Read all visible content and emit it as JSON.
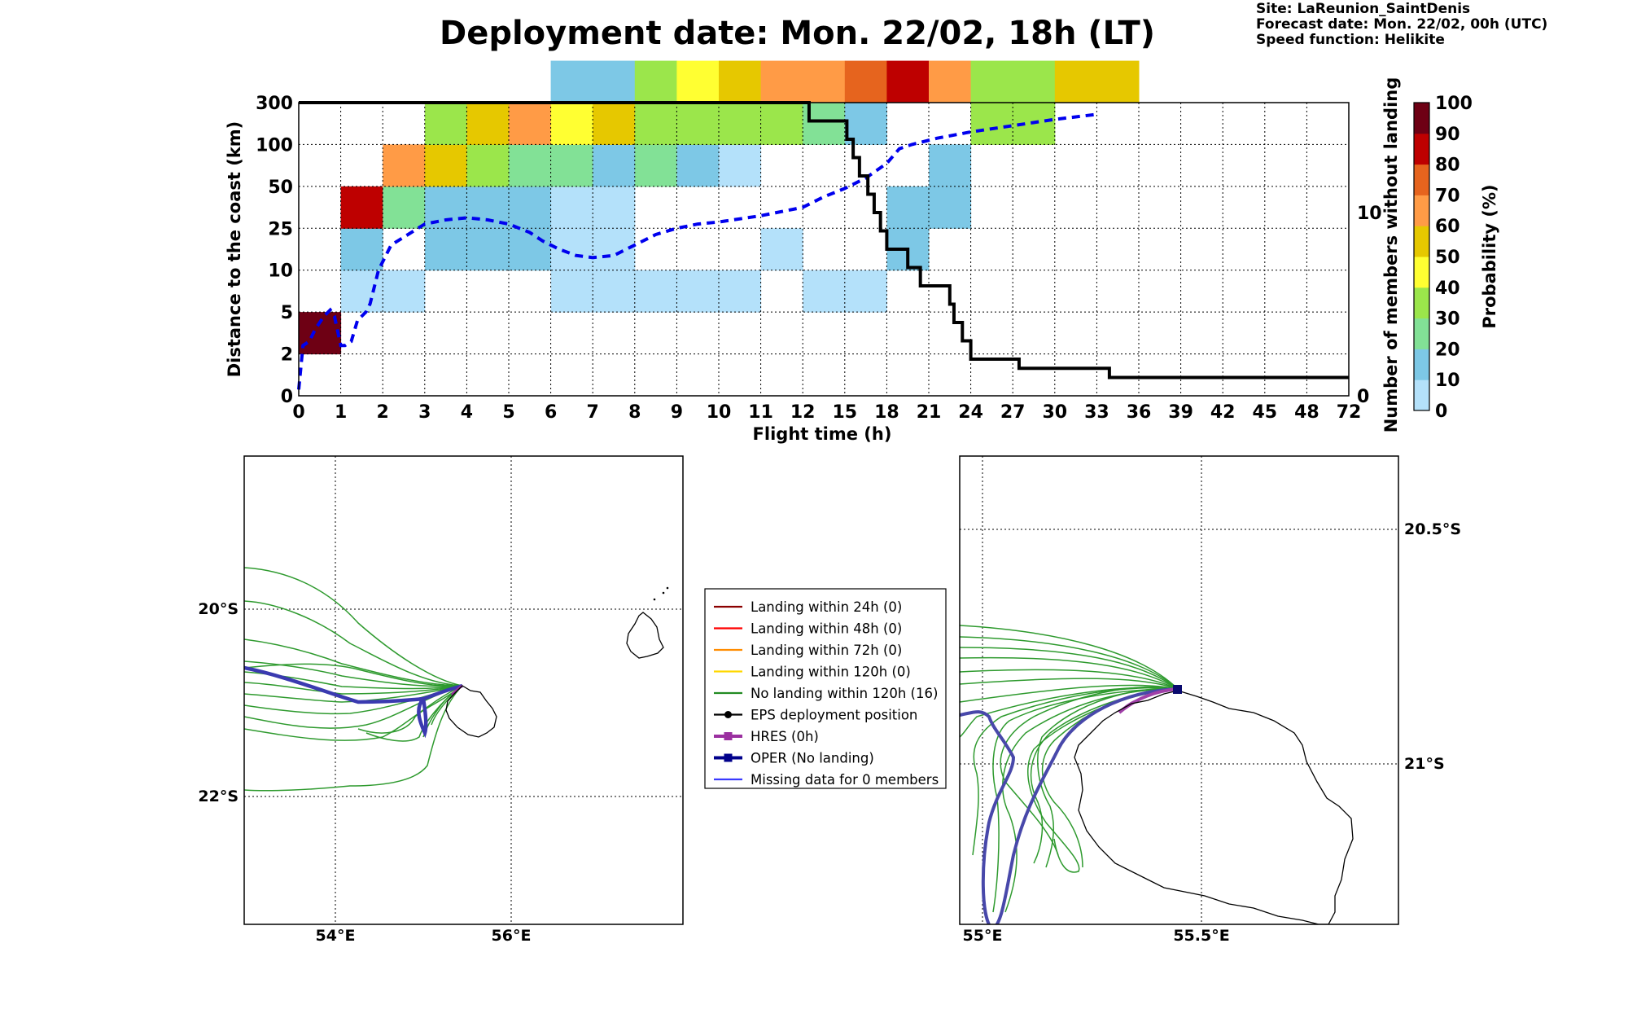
{
  "header": {
    "title": "Deployment date: Mon. 22/02, 18h (LT)",
    "site": "Site: LaReunion_SaintDenis",
    "forecast": "Forecast date: Mon. 22/02, 00h (UTC)",
    "speed": "Speed function: Helikite"
  },
  "chart_data": [
    {
      "type": "heatmap",
      "xlabel": "Flight time (h)",
      "ylabel": "Distance to the coast (km)",
      "y2label": "Number of members without landing",
      "colorbar_label": "Probability (%)",
      "x_ticks": [
        "0",
        "1",
        "2",
        "3",
        "4",
        "5",
        "6",
        "7",
        "8",
        "9",
        "10",
        "11",
        "12",
        "15",
        "18",
        "21",
        "24",
        "27",
        "30",
        "33",
        "36",
        "39",
        "42",
        "45",
        "48",
        "72"
      ],
      "y_ticks": [
        "0",
        "2",
        "5",
        "10",
        "25",
        "50",
        "100",
        "300"
      ],
      "y2_ticks": [
        "0",
        "10"
      ],
      "y2lim": [
        0,
        16
      ],
      "colorbar_ticks": [
        "0",
        "10",
        "20",
        "30",
        "40",
        "50",
        "60",
        "70",
        "80",
        "90",
        "100"
      ],
      "colorbar_colors": [
        "#b4e1fa",
        "#7dc8e6",
        "#82e196",
        "#9be64b",
        "#ffff32",
        "#e6c800",
        "#ff9b46",
        "#e6641e",
        "#be0000",
        "#6e0014"
      ],
      "grid": true,
      "cells": [
        {
          "x": 0,
          "y": 1,
          "p": 95
        },
        {
          "x": 1,
          "y": 2,
          "p": 5
        },
        {
          "x": 1,
          "y": 3,
          "p": 15
        },
        {
          "x": 1,
          "y": 4,
          "p": 85
        },
        {
          "x": 2,
          "y": 2,
          "p": 5
        },
        {
          "x": 2,
          "y": 4,
          "p": 25
        },
        {
          "x": 2,
          "y": 5,
          "p": 65
        },
        {
          "x": 3,
          "y": 3,
          "p": 15
        },
        {
          "x": 3,
          "y": 4,
          "p": 15
        },
        {
          "x": 3,
          "y": 5,
          "p": 55
        },
        {
          "x": 3,
          "y": 6,
          "p": 35
        },
        {
          "x": 4,
          "y": 3,
          "p": 15
        },
        {
          "x": 4,
          "y": 4,
          "p": 15
        },
        {
          "x": 4,
          "y": 5,
          "p": 35
        },
        {
          "x": 4,
          "y": 6,
          "p": 55
        },
        {
          "x": 5,
          "y": 3,
          "p": 15
        },
        {
          "x": 5,
          "y": 4,
          "p": 15
        },
        {
          "x": 5,
          "y": 5,
          "p": 25
        },
        {
          "x": 5,
          "y": 6,
          "p": 65
        },
        {
          "x": 6,
          "y": 2,
          "p": 5
        },
        {
          "x": 6,
          "y": 3,
          "p": 5
        },
        {
          "x": 6,
          "y": 4,
          "p": 5
        },
        {
          "x": 6,
          "y": 5,
          "p": 25
        },
        {
          "x": 6,
          "y": 6,
          "p": 45
        },
        {
          "x": 6,
          "y": 7,
          "p": 15
        },
        {
          "x": 7,
          "y": 2,
          "p": 5
        },
        {
          "x": 7,
          "y": 3,
          "p": 5
        },
        {
          "x": 7,
          "y": 4,
          "p": 5
        },
        {
          "x": 7,
          "y": 5,
          "p": 15
        },
        {
          "x": 7,
          "y": 6,
          "p": 55
        },
        {
          "x": 7,
          "y": 7,
          "p": 15
        },
        {
          "x": 8,
          "y": 2,
          "p": 5
        },
        {
          "x": 8,
          "y": 5,
          "p": 25
        },
        {
          "x": 8,
          "y": 6,
          "p": 35
        },
        {
          "x": 8,
          "y": 7,
          "p": 35
        },
        {
          "x": 9,
          "y": 2,
          "p": 5
        },
        {
          "x": 9,
          "y": 5,
          "p": 15
        },
        {
          "x": 9,
          "y": 6,
          "p": 35
        },
        {
          "x": 9,
          "y": 7,
          "p": 45
        },
        {
          "x": 10,
          "y": 2,
          "p": 5
        },
        {
          "x": 10,
          "y": 5,
          "p": 5
        },
        {
          "x": 10,
          "y": 6,
          "p": 35
        },
        {
          "x": 10,
          "y": 7,
          "p": 55
        },
        {
          "x": 11,
          "y": 3,
          "p": 5
        },
        {
          "x": 11,
          "y": 6,
          "p": 35
        },
        {
          "x": 11,
          "y": 7,
          "p": 65
        },
        {
          "x": 12,
          "y": 2,
          "p": 5
        },
        {
          "x": 12,
          "y": 6,
          "p": 25
        },
        {
          "x": 12,
          "y": 7,
          "p": 65
        },
        {
          "x": 13,
          "y": 2,
          "p": 5
        },
        {
          "x": 13,
          "y": 6,
          "p": 15
        },
        {
          "x": 13,
          "y": 7,
          "p": 75
        },
        {
          "x": 14,
          "y": 3,
          "p": 15
        },
        {
          "x": 14,
          "y": 4,
          "p": 15
        },
        {
          "x": 14,
          "y": 7,
          "p": 85
        },
        {
          "x": 15,
          "y": 4,
          "p": 15
        },
        {
          "x": 15,
          "y": 5,
          "p": 15
        },
        {
          "x": 15,
          "y": 7,
          "p": 65
        },
        {
          "x": 16,
          "y": 6,
          "p": 35
        },
        {
          "x": 16,
          "y": 7,
          "p": 35
        },
        {
          "x": 17,
          "y": 6,
          "p": 35
        },
        {
          "x": 17,
          "y": 7,
          "p": 35
        },
        {
          "x": 18,
          "y": 7,
          "p": 55
        },
        {
          "x": 19,
          "y": 7,
          "p": 55
        }
      ],
      "series": [
        {
          "name": "Mean distance",
          "style": "dashed",
          "color": "#0000ee",
          "points": [
            [
              0,
              0.15
            ],
            [
              0.1,
              1.2
            ],
            [
              0.25,
              1.3
            ],
            [
              0.4,
              1.6
            ],
            [
              0.6,
              1.9
            ],
            [
              0.75,
              2.05
            ],
            [
              0.85,
              1.9
            ],
            [
              1.0,
              1.2
            ],
            [
              1.1,
              1.2
            ],
            [
              1.25,
              1.3
            ],
            [
              1.4,
              1.8
            ],
            [
              1.6,
              2.0
            ],
            [
              1.7,
              2.2
            ],
            [
              1.9,
              3.0
            ],
            [
              2.2,
              3.6
            ],
            [
              2.6,
              3.85
            ],
            [
              3.0,
              4.1
            ],
            [
              3.5,
              4.2
            ],
            [
              4.0,
              4.25
            ],
            [
              4.5,
              4.2
            ],
            [
              5.0,
              4.1
            ],
            [
              5.5,
              3.9
            ],
            [
              5.8,
              3.7
            ],
            [
              6.2,
              3.5
            ],
            [
              6.6,
              3.35
            ],
            [
              7.0,
              3.3
            ],
            [
              7.5,
              3.35
            ],
            [
              8.0,
              3.6
            ],
            [
              8.5,
              3.85
            ],
            [
              9.0,
              4.0
            ],
            [
              9.5,
              4.1
            ],
            [
              10.0,
              4.15
            ],
            [
              11.0,
              4.3
            ],
            [
              12.0,
              4.5
            ],
            [
              12.5,
              4.75
            ],
            [
              13.0,
              4.95
            ],
            [
              13.5,
              5.2
            ],
            [
              14.0,
              5.55
            ],
            [
              14.3,
              5.9
            ],
            [
              14.6,
              6.0
            ],
            [
              15.2,
              6.15
            ],
            [
              16.0,
              6.3
            ],
            [
              17.0,
              6.45
            ],
            [
              18.0,
              6.6
            ],
            [
              19.0,
              6.72
            ]
          ]
        },
        {
          "name": "Number of members without landing",
          "style": "step",
          "color": "#000000",
          "steps": [
            [
              0,
              16
            ],
            [
              12.15,
              15
            ],
            [
              13.05,
              14
            ],
            [
              13.2,
              13
            ],
            [
              13.35,
              12
            ],
            [
              13.55,
              11
            ],
            [
              13.7,
              10
            ],
            [
              13.85,
              9
            ],
            [
              14.0,
              8
            ],
            [
              14.5,
              7
            ],
            [
              14.8,
              6
            ],
            [
              15.5,
              5
            ],
            [
              15.6,
              4
            ],
            [
              15.8,
              3
            ],
            [
              16.0,
              2
            ],
            [
              17.15,
              1.5
            ],
            [
              19.3,
              1
            ],
            [
              25.0,
              1
            ]
          ]
        }
      ]
    },
    {
      "type": "map",
      "lon_ticks": [
        "54°E",
        "56°E"
      ],
      "lat_ticks": [
        "20°S",
        "22°S"
      ]
    },
    {
      "type": "map",
      "lon_ticks": [
        "55°E",
        "55.5°E"
      ],
      "lat_ticks": [
        "20.5°S",
        "21°S"
      ]
    }
  ],
  "legend": {
    "items": [
      {
        "label": "Landing within 24h (0)",
        "color": "#8b0000",
        "marker": "none"
      },
      {
        "label": "Landing within 48h (0)",
        "color": "#ff0000",
        "marker": "none"
      },
      {
        "label": "Landing within 72h (0)",
        "color": "#ff8c00",
        "marker": "none"
      },
      {
        "label": "Landing within 120h (0)",
        "color": "#ffd700",
        "marker": "none"
      },
      {
        "label": "No landing within 120h (16)",
        "color": "#228b22",
        "marker": "none"
      },
      {
        "label": "EPS deployment position",
        "color": "#000000",
        "marker": "circle"
      },
      {
        "label": "HRES (0h)",
        "color": "#9b30a0",
        "marker": "square"
      },
      {
        "label": "OPER (No landing)",
        "color": "#00008b",
        "marker": "square"
      },
      {
        "label": "Missing data for 0 members",
        "color": "#3a3aff",
        "marker": "none"
      }
    ]
  }
}
